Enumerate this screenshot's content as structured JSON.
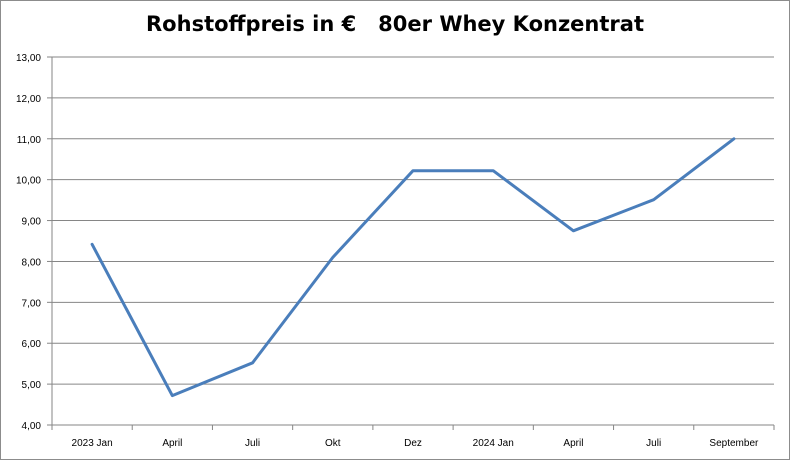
{
  "chart_data": {
    "type": "line",
    "title": "Rohstoffpreis in €   80er Whey Konzentrat",
    "xlabel": "",
    "ylabel": "",
    "categories": [
      "2023 Jan",
      "April",
      "Juli",
      "Okt",
      "Dez",
      "2024 Jan",
      "April",
      "Juli",
      "September"
    ],
    "series": [
      {
        "values": [
          8.42,
          4.72,
          5.52,
          8.1,
          10.22,
          10.22,
          8.75,
          9.51,
          11.0
        ],
        "color": "#4a7ebb"
      }
    ],
    "ylim": [
      4,
      13
    ],
    "yticks": [
      "4,00",
      "5,00",
      "6,00",
      "7,00",
      "8,00",
      "9,00",
      "10,00",
      "11,00",
      "12,00",
      "13,00"
    ],
    "grid": true,
    "legend": "none"
  }
}
